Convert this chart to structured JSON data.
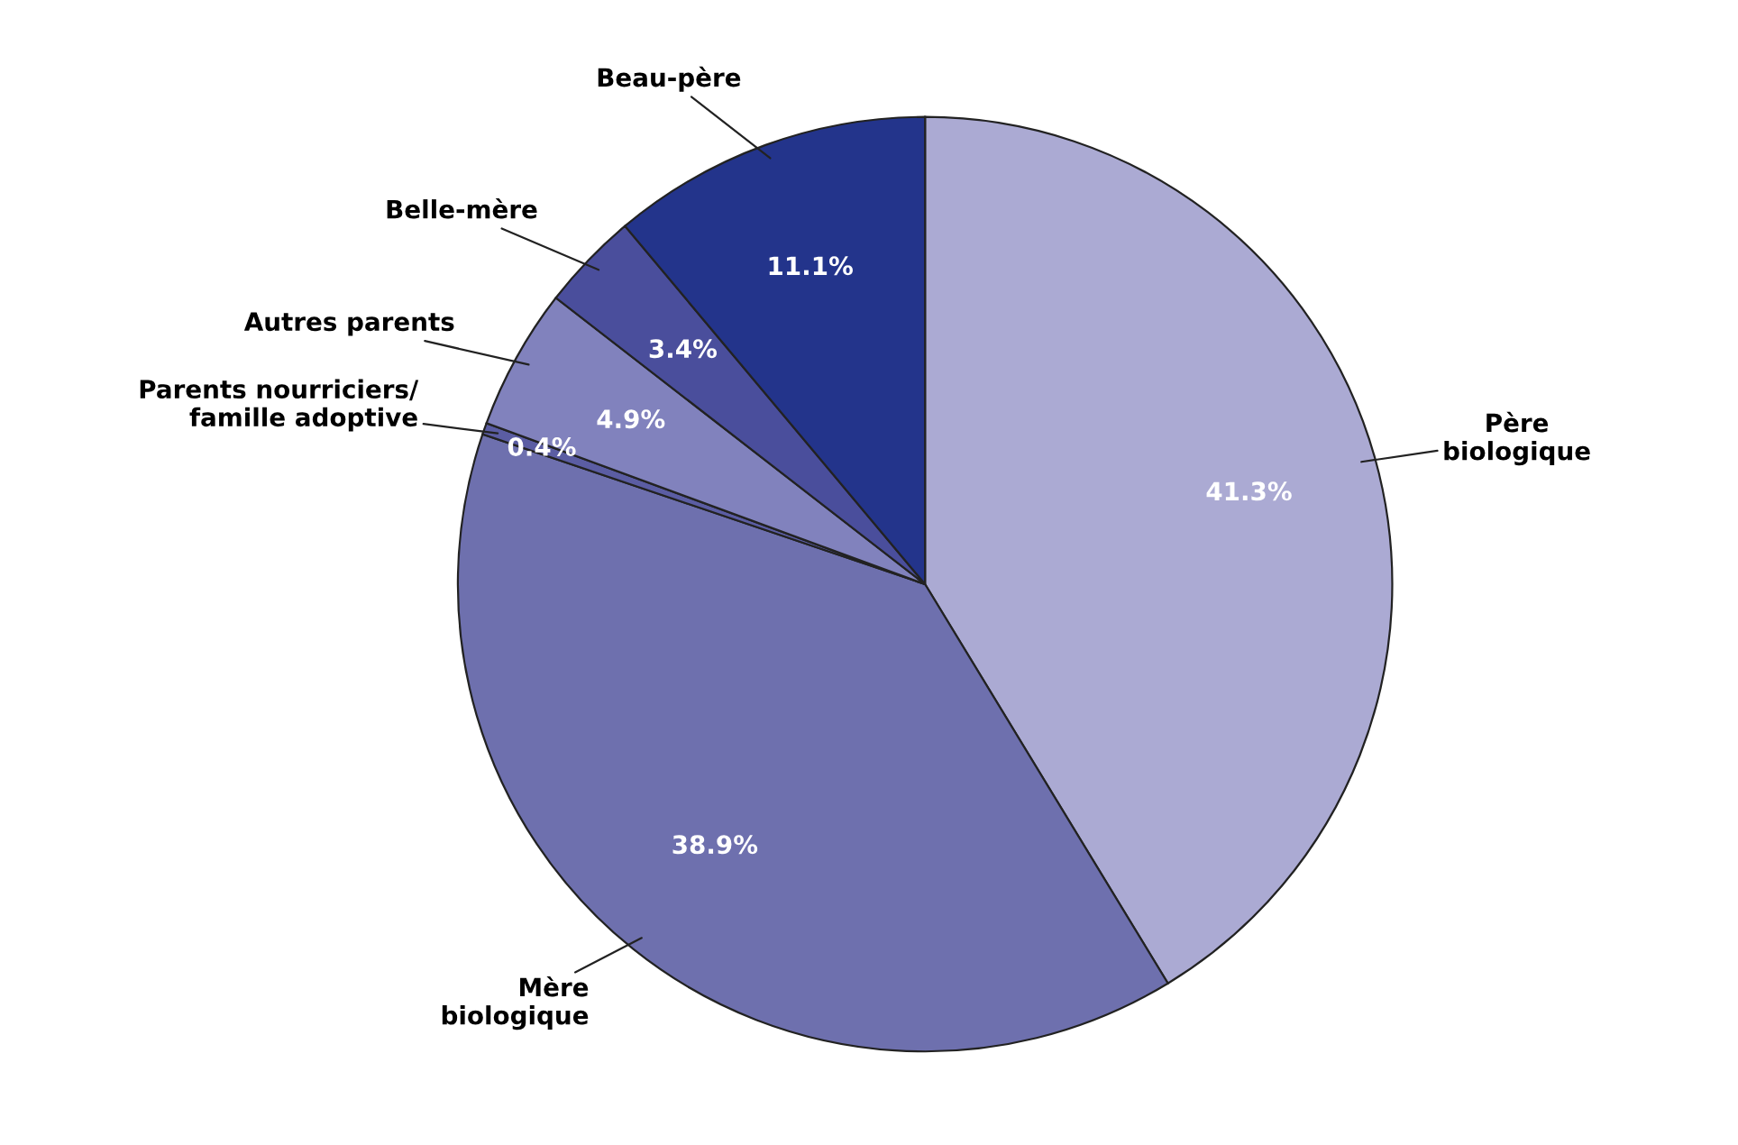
{
  "chart_data": {
    "type": "pie",
    "categories": [
      "Père\nbiologique",
      "Mère\nbiologique",
      "Parents nourriciers/\nfamille adoptive",
      "Autres parents",
      "Belle-mère",
      "Beau-père"
    ],
    "values": [
      41.3,
      38.9,
      0.4,
      4.9,
      3.4,
      11.1
    ],
    "value_labels": [
      "41.3%",
      "38.9%",
      "0.4%",
      "4.9%",
      "3.4%",
      "11.1%"
    ],
    "colors": [
      "#abaad3",
      "#6e70ae",
      "#5b5da3",
      "#8182bd",
      "#4a4e9c",
      "#23348b"
    ],
    "legend": false
  }
}
